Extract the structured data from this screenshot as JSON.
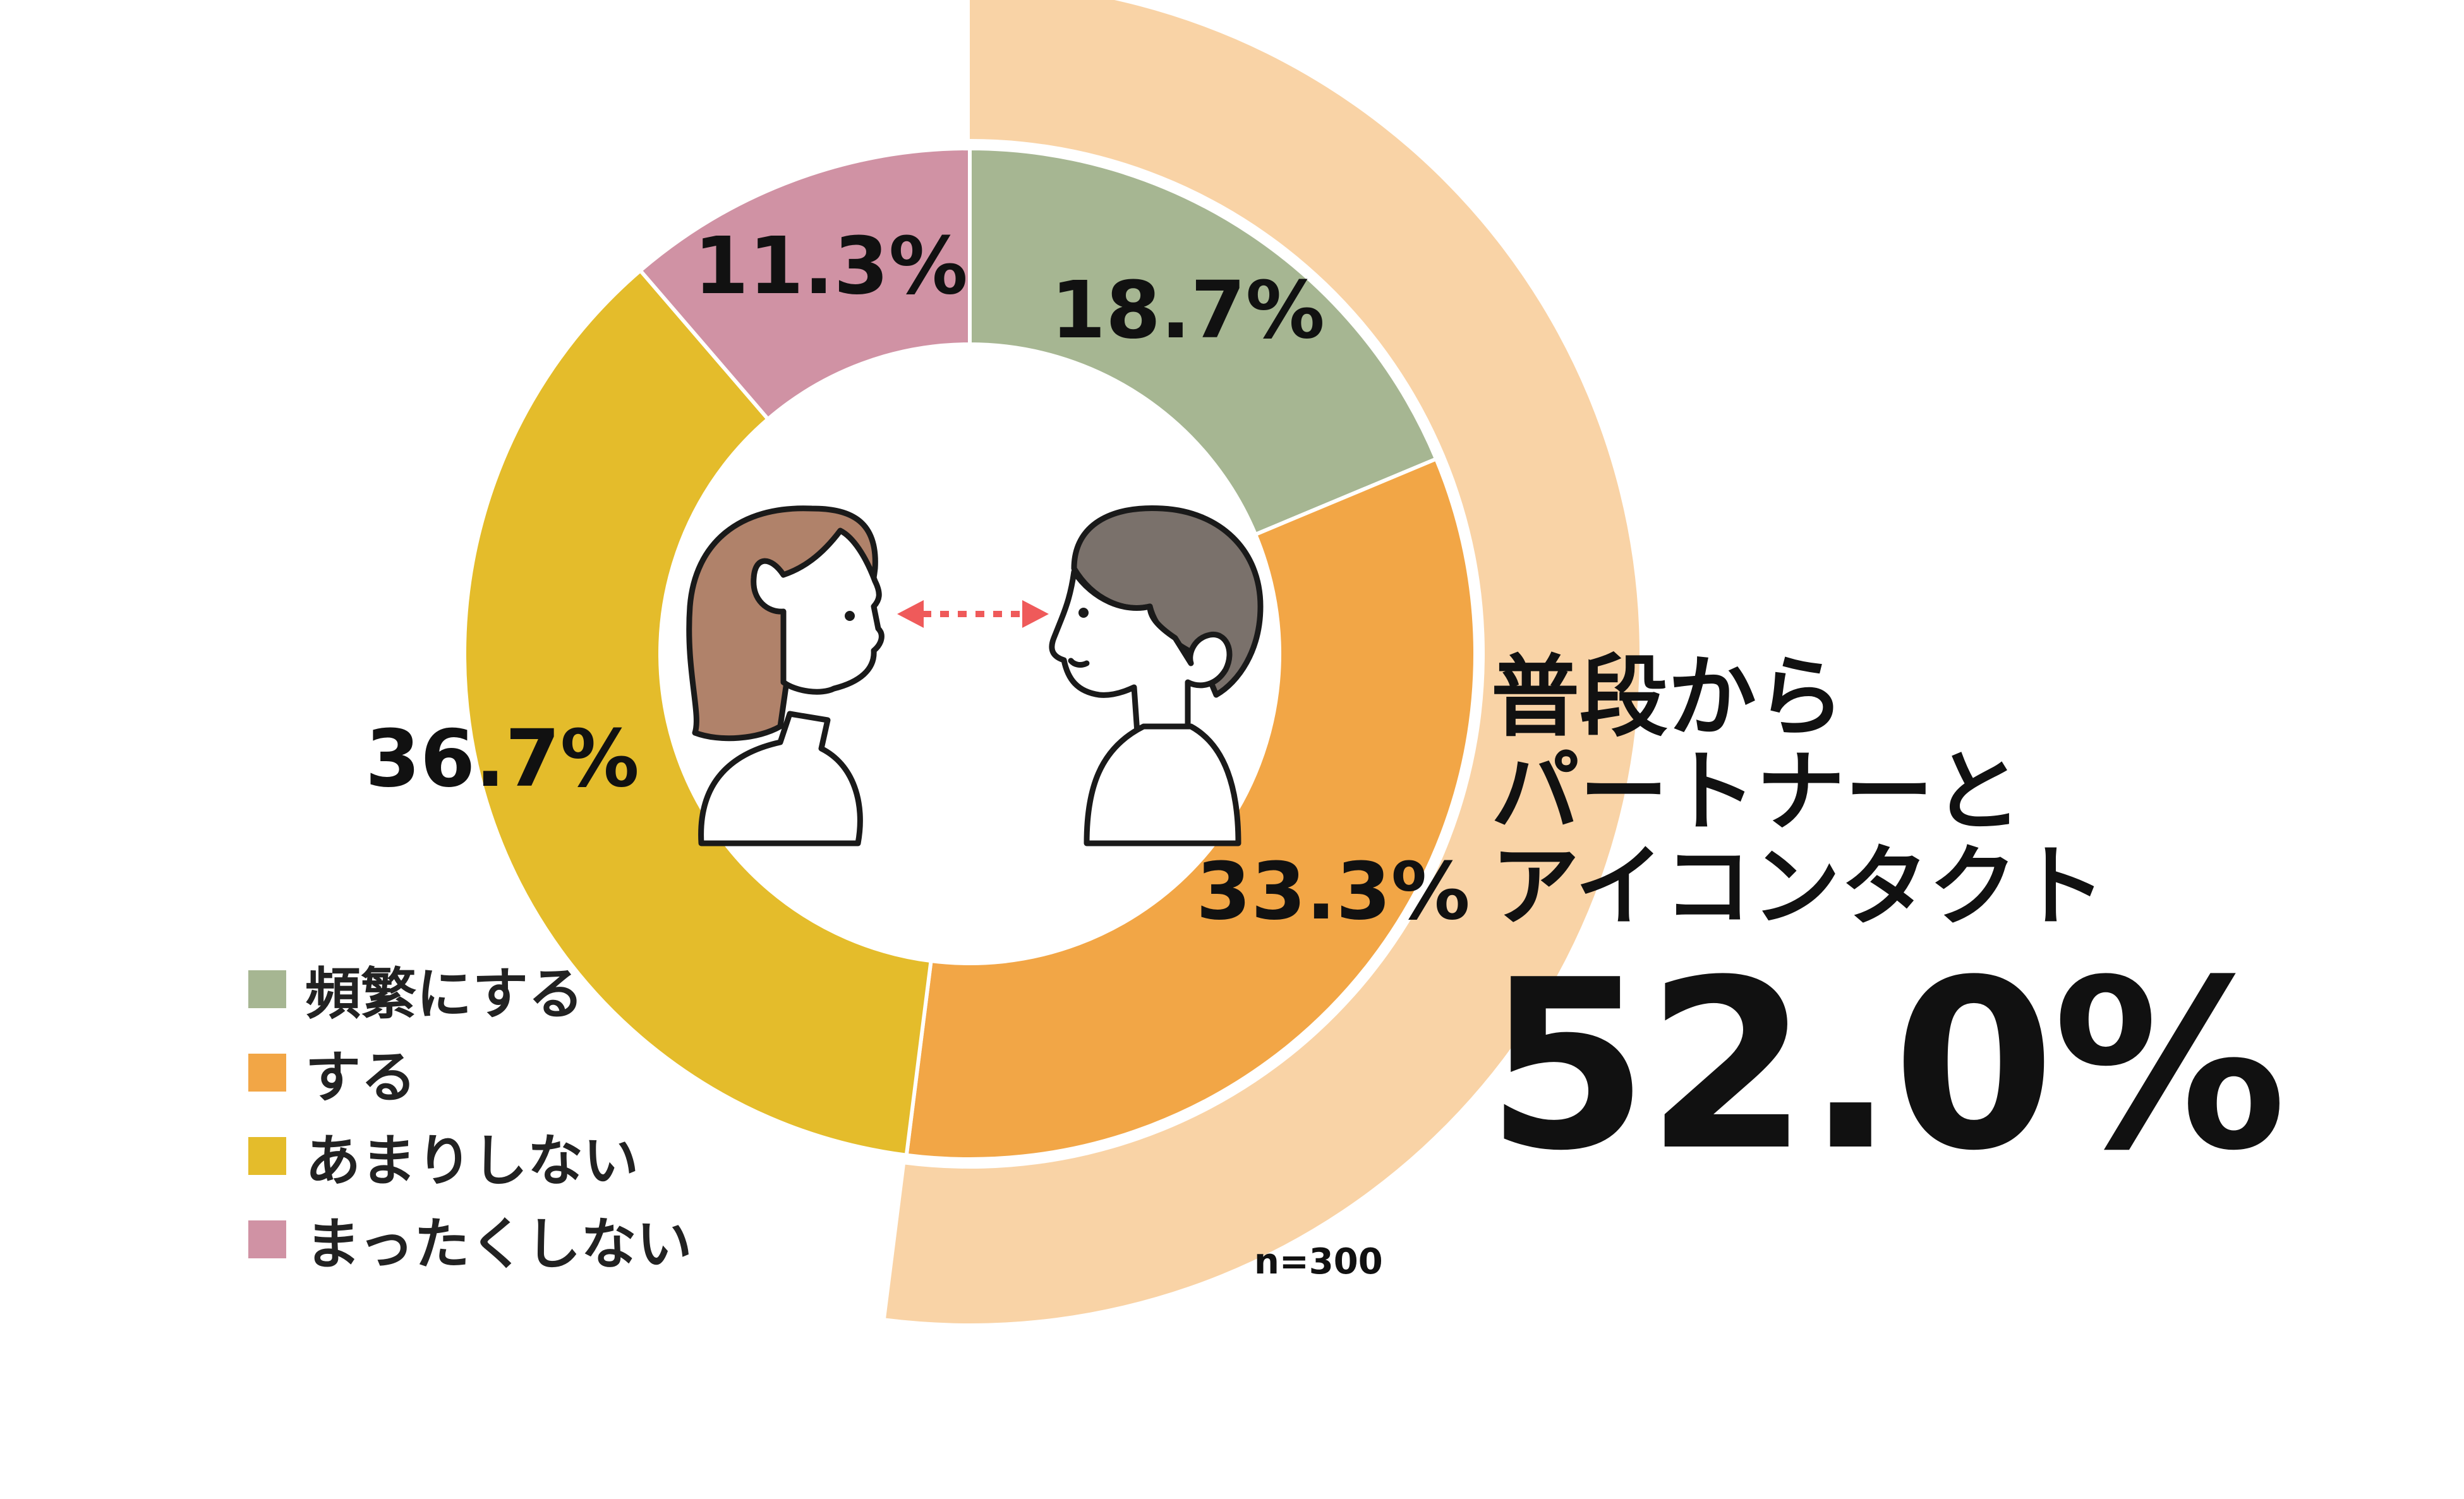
{
  "chart_data": {
    "type": "pie",
    "categories": [
      "頻繁にする",
      "する",
      "あまりしない",
      "まったくしない"
    ],
    "values": [
      18.7,
      33.3,
      36.7,
      11.3
    ],
    "labels": [
      "18.7%",
      "33.3%",
      "36.7%",
      "11.3%"
    ],
    "colors": [
      "#A6B692",
      "#F2A646",
      "#E4BC2B",
      "#D092A4"
    ],
    "highlight": {
      "colors": [
        "#F9D3A6"
      ],
      "covers_categories": [
        "頻繁にする",
        "する"
      ]
    },
    "legend": "bottom-left"
  },
  "sample_size": "n=300",
  "headline": {
    "lines": [
      "普段から",
      "パートナーと",
      "アイコンタクト"
    ],
    "value": "52.0%"
  },
  "illustration": {
    "icons": [
      "woman-face-icon",
      "man-face-icon",
      "double-arrow-icon"
    ],
    "colors": {
      "woman_hair": "#B0826A",
      "man_hair": "#7A716B",
      "arrow": "#EF5A5A",
      "outline": "#1A1A1A"
    }
  }
}
